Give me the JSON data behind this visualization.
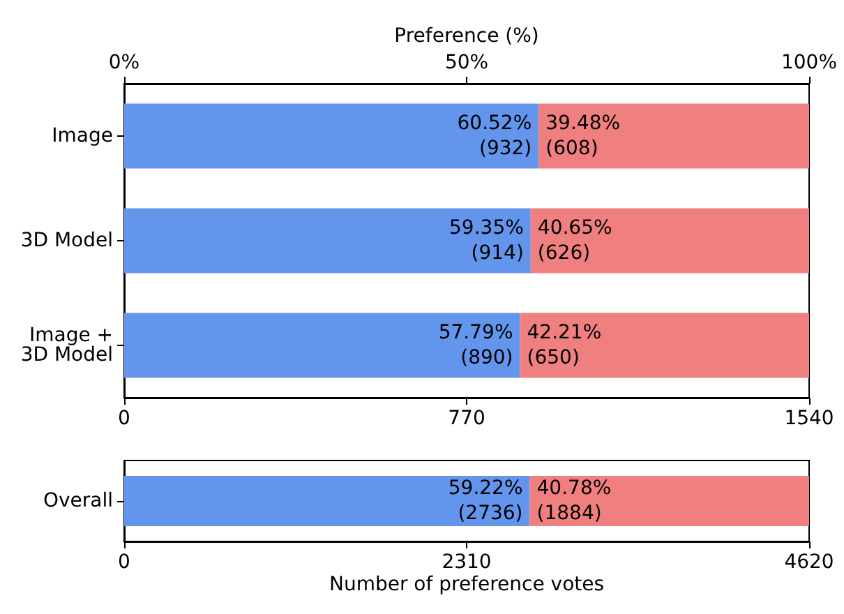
{
  "chart_data": [
    {
      "type": "bar",
      "orientation": "horizontal",
      "stacked": true,
      "categories": [
        "Image",
        "3D Model",
        "Image +\n3D Model"
      ],
      "series": [
        {
          "color": "#6495ed",
          "values": [
            932,
            914,
            890
          ],
          "value_labels": [
            "60.52%\n(932)",
            "59.35%\n(914)",
            "57.79%\n(890)"
          ]
        },
        {
          "color": "#f08080",
          "values": [
            608,
            626,
            650
          ],
          "value_labels": [
            "39.48%\n(608)",
            "40.65%\n(626)",
            "42.21%\n(650)"
          ]
        }
      ],
      "xlim": [
        0,
        1540
      ],
      "xticks": [
        0,
        770,
        1540
      ],
      "x2label": "Preference (%)",
      "x2lim": [
        0,
        100
      ],
      "x2ticks": [
        {
          "value": 0,
          "label": "0%"
        },
        {
          "value": 50,
          "label": "50%"
        },
        {
          "value": 100,
          "label": "100%"
        }
      ],
      "grid": false
    },
    {
      "type": "bar",
      "orientation": "horizontal",
      "stacked": true,
      "categories": [
        "Overall"
      ],
      "series": [
        {
          "color": "#6495ed",
          "values": [
            2736
          ],
          "value_labels": [
            "59.22%\n(2736)"
          ]
        },
        {
          "color": "#f08080",
          "values": [
            1884
          ],
          "value_labels": [
            "40.78%\n(1884)"
          ]
        }
      ],
      "xlim": [
        0,
        4620
      ],
      "xticks": [
        0,
        2310,
        4620
      ],
      "xlabel": "Number of preference votes",
      "grid": false
    }
  ]
}
